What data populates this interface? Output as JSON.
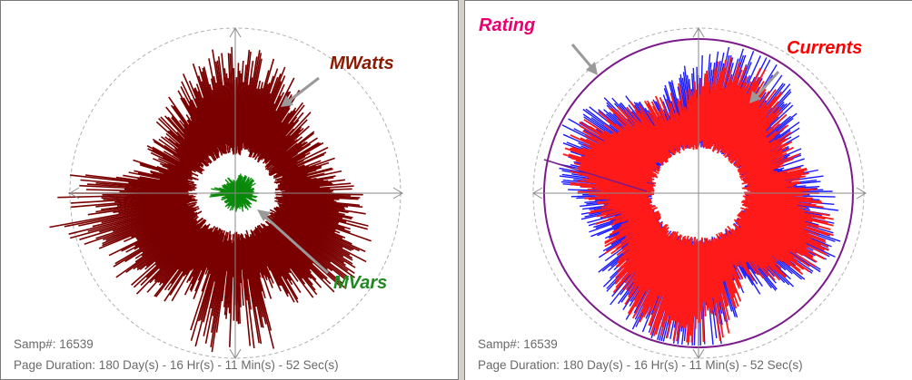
{
  "panels": [
    {
      "id": "power",
      "annotations": [
        {
          "text": "MWatts",
          "color": "#8b1a00"
        },
        {
          "text": "MVars",
          "color": "#1f8a1f"
        }
      ],
      "samp_label": "Samp#: 16539",
      "duration_label": "Page Duration: 180 Day(s) - 16 Hr(s) - 11 Min(s) - 52 Sec(s)",
      "series_colors": {
        "mwatts": "#7a0000",
        "mvars": "#0a8a0a"
      }
    },
    {
      "id": "currents",
      "annotations": [
        {
          "text": "Rating",
          "color": "#e8006e"
        },
        {
          "text": "Currents",
          "color": "#ff0000"
        }
      ],
      "samp_label": "Samp#: 16539",
      "duration_label": "Page Duration: 180 Day(s) - 16 Hr(s) - 11 Min(s) - 52 Sec(s)",
      "series_colors": {
        "currents": "#ff1a1a",
        "currents_edge": "#1a1aff",
        "rating": "#7a1a8a"
      }
    }
  ],
  "colors": {
    "axis": "#8a8a8a",
    "dashed_circle": "#b0b0b0",
    "arrow": "#9a9a9a",
    "footer_text": "#6a6a6a"
  }
}
